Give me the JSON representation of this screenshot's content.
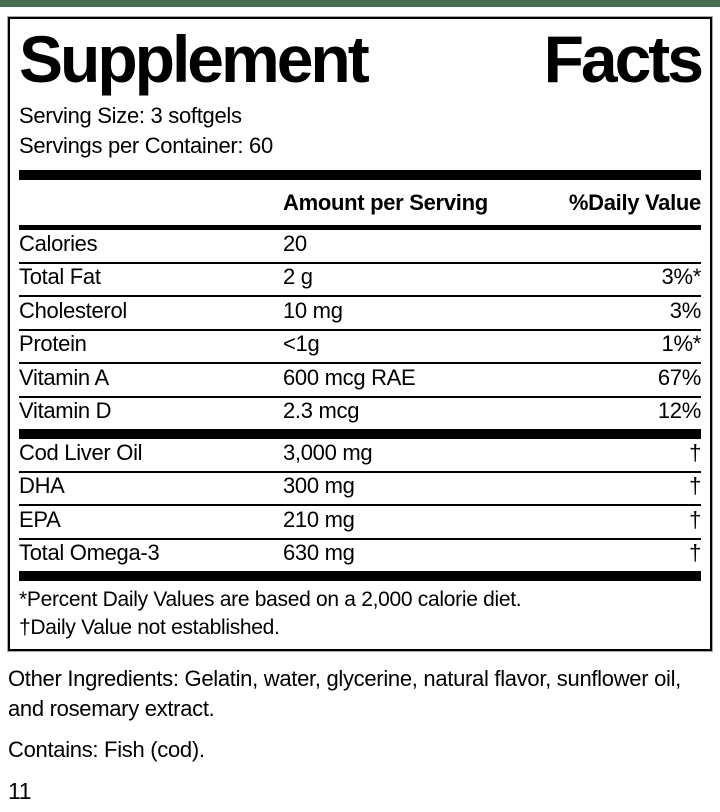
{
  "page": {
    "accent_color": "#476e4f",
    "page_number": "11"
  },
  "panel": {
    "title": {
      "left": "Supplement",
      "right": "Facts"
    },
    "serving_size": "Serving Size: 3 softgels",
    "servings_per_container": "Servings per Container: 60",
    "columns": {
      "amount": "Amount per Serving",
      "daily_value": "%Daily Value"
    },
    "rows_main": [
      {
        "name": "Calories",
        "amount": "20",
        "dv": ""
      },
      {
        "name": "Total Fat",
        "amount": "2 g",
        "dv": "3%*"
      },
      {
        "name": "Cholesterol",
        "amount": "10 mg",
        "dv": "3%"
      },
      {
        "name": "Protein",
        "amount": "<1g",
        "dv": "1%*"
      },
      {
        "name": "Vitamin A",
        "amount": "600 mcg RAE",
        "dv": "67%"
      },
      {
        "name": "Vitamin D",
        "amount": "2.3 mcg",
        "dv": "12%"
      }
    ],
    "rows_blend": [
      {
        "name": "Cod Liver Oil",
        "amount": "3,000 mg",
        "dv": "†"
      },
      {
        "name": "DHA",
        "amount": "300 mg",
        "dv": "†"
      },
      {
        "name": "EPA",
        "amount": "210 mg",
        "dv": "†"
      },
      {
        "name": "Total Omega-3",
        "amount": "630 mg",
        "dv": "†"
      }
    ],
    "footnotes": [
      "*Percent Daily Values are based on a 2,000 calorie diet.",
      "†Daily Value not established."
    ]
  },
  "below": {
    "other_ingredients": "Other Ingredients: Gelatin, water, glycerine, natural flavor, sunflower oil, and rosemary extract.",
    "contains": "Contains: Fish (cod)."
  }
}
